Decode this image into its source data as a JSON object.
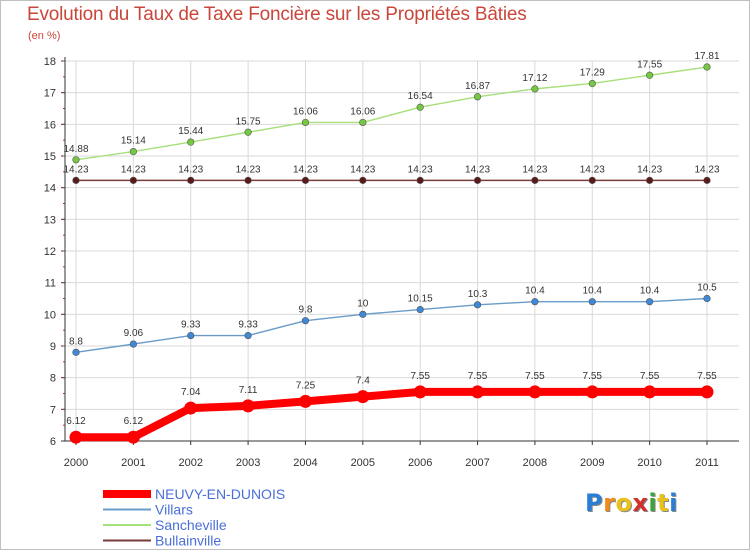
{
  "chart_data": {
    "type": "line",
    "title": "Evolution du Taux de Taxe Foncière sur les Propriétés Bâties",
    "ylabel": "(en %)",
    "xlabel": "",
    "x": [
      "2000",
      "2001",
      "2002",
      "2003",
      "2004",
      "2005",
      "2006",
      "2007",
      "2008",
      "2009",
      "2010",
      "2011"
    ],
    "ylim": [
      6,
      18
    ],
    "yticks": [
      "6",
      "7",
      "8",
      "9",
      "10",
      "11",
      "12",
      "13",
      "14",
      "15",
      "16",
      "17",
      "18"
    ],
    "grid": true,
    "legend_position": "bottom-left",
    "series": [
      {
        "name": "NEUVY-EN-DUNOIS",
        "color": "#ff0000",
        "marker_color": "#ff0000",
        "emphasis": true,
        "values": [
          6.12,
          6.12,
          7.04,
          7.11,
          7.25,
          7.4,
          7.55,
          7.55,
          7.55,
          7.55,
          7.55,
          7.55
        ],
        "labels": [
          "6.12",
          "6.12",
          "7.04",
          "7.11",
          "7.25",
          "7.4",
          "7.55",
          "7.55",
          "7.55",
          "7.55",
          "7.55",
          "7.55"
        ]
      },
      {
        "name": "Villars",
        "color": "#6a9cc8",
        "marker_color": "#3f88d6",
        "emphasis": false,
        "values": [
          8.8,
          9.06,
          9.33,
          9.33,
          9.8,
          10,
          10.15,
          10.3,
          10.4,
          10.4,
          10.4,
          10.5
        ],
        "labels": [
          "8.8",
          "9.06",
          "9.33",
          "9.33",
          "9.8",
          "10",
          "10.15",
          "10.3",
          "10.4",
          "10.4",
          "10.4",
          "10.5"
        ]
      },
      {
        "name": "Sancheville",
        "color": "#a6e07a",
        "marker_color": "#76c843",
        "emphasis": false,
        "values": [
          14.88,
          15.14,
          15.44,
          15.75,
          16.06,
          16.06,
          16.54,
          16.87,
          17.12,
          17.29,
          17.55,
          17.81
        ],
        "labels": [
          "14.88",
          "15.14",
          "15.44",
          "15.75",
          "16.06",
          "16.06",
          "16.54",
          "16.87",
          "17.12",
          "17.29",
          "17.55",
          "17.81"
        ]
      },
      {
        "name": "Bullainville",
        "color": "#7a3b3b",
        "marker_color": "#5a1a1a",
        "emphasis": false,
        "values": [
          14.23,
          14.23,
          14.23,
          14.23,
          14.23,
          14.23,
          14.23,
          14.23,
          14.23,
          14.23,
          14.23,
          14.23
        ],
        "labels": [
          "14.23",
          "14.23",
          "14.23",
          "14.23",
          "14.23",
          "14.23",
          "14.23",
          "14.23",
          "14.23",
          "14.23",
          "14.23",
          "14.23"
        ]
      }
    ]
  },
  "logo": {
    "letters": [
      "P",
      "r",
      "o",
      "x",
      "i",
      "t",
      "i"
    ],
    "colors": [
      "#2a7fd4",
      "#f08a1c",
      "#e8c21a",
      "#d2302a",
      "#3aa43a",
      "#e8c21a",
      "#2a7fd4"
    ]
  },
  "colors": {
    "title": "#c9473a",
    "legend_text": "#4a6fd8",
    "grid": "#d9d9d9",
    "axis": "#333333"
  }
}
